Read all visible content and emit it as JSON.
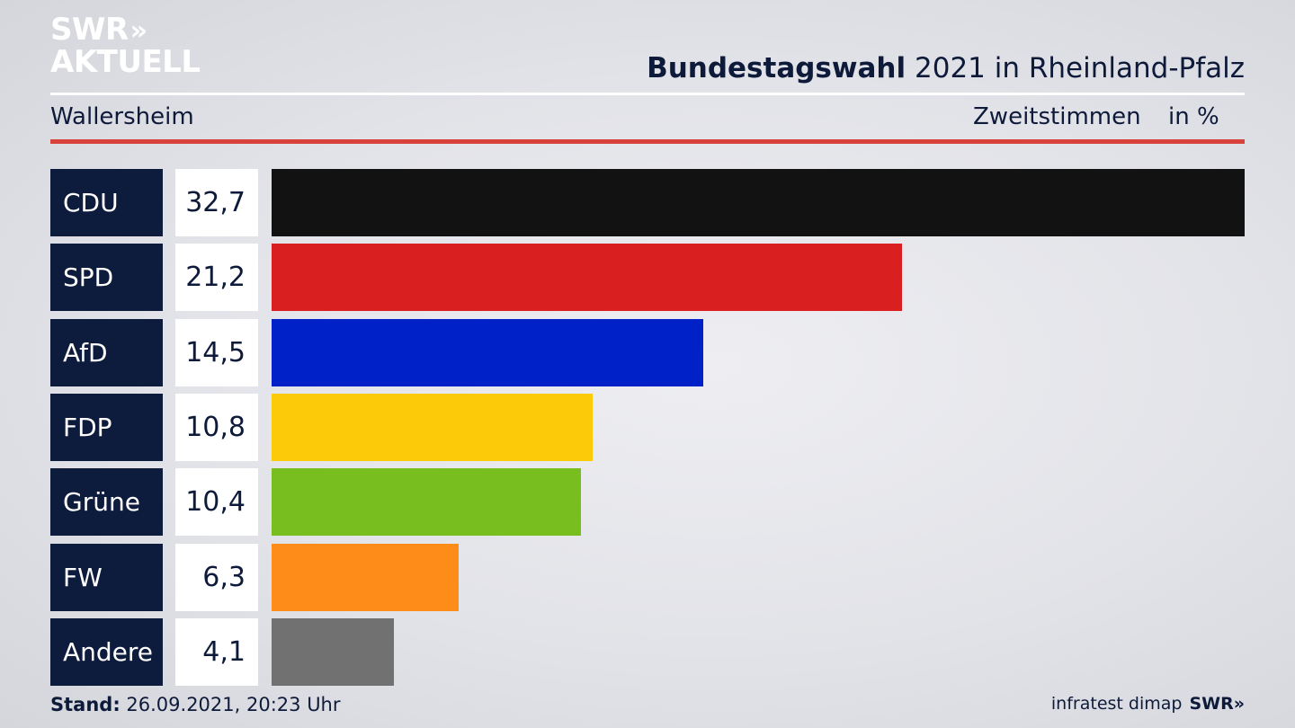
{
  "brand": {
    "line1": "SWR",
    "line1_arrows": "»",
    "line2": "AKTUELL"
  },
  "header": {
    "title_bold": "Bundestagswahl",
    "title_rest": "2021 in Rheinland-Pfalz",
    "subtitle": "Wallersheim",
    "measure": "Zweitstimmen",
    "unit": "in %"
  },
  "footer": {
    "stand_label": "Stand:",
    "stand_value": "26.09.2021, 20:23 Uhr",
    "source": "infratest dimap",
    "source_logo": "SWR»"
  },
  "colors": {
    "CDU": "#121212",
    "SPD": "#d91f1f",
    "AfD": "#0020c8",
    "FDP": "#fdca0a",
    "Grüne": "#78be1e",
    "FW": "#fd8c19",
    "Andere": "#717172"
  },
  "chart_data": {
    "type": "bar",
    "orientation": "horizontal",
    "categories": [
      "CDU",
      "SPD",
      "AfD",
      "FDP",
      "Grüne",
      "FW",
      "Andere"
    ],
    "values": [
      32.7,
      21.2,
      14.5,
      10.8,
      10.4,
      6.3,
      4.1
    ],
    "value_labels": [
      "32,7",
      "21,2",
      "14,5",
      "10,8",
      "10,4",
      "6,3",
      "4,1"
    ],
    "colors": [
      "#121212",
      "#d91f1f",
      "#0020c8",
      "#fdca0a",
      "#78be1e",
      "#fd8c19",
      "#717172"
    ],
    "xlim": [
      0,
      32.7
    ],
    "grid": false,
    "legend": "none"
  }
}
